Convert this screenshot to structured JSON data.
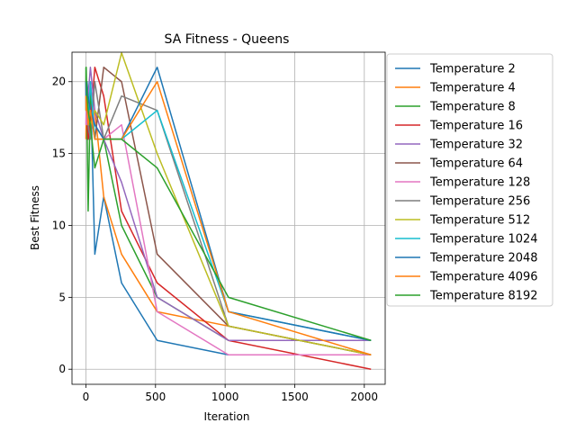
{
  "chart_data": {
    "type": "line",
    "title": "SA Fitness - Queens",
    "xlabel": "Iteration",
    "ylabel": "Best Fitness",
    "xlim": [
      -100,
      2150
    ],
    "ylim": [
      -1.05,
      22.05
    ],
    "x_ticks": [
      0,
      500,
      1000,
      1500,
      2000
    ],
    "y_ticks": [
      0,
      5,
      10,
      15,
      20
    ],
    "grid": true,
    "legend_position": "outside-right",
    "series": [
      {
        "name": "Temperature 2",
        "color": "#1f77b4",
        "x": [
          0,
          2,
          4,
          8,
          16,
          32,
          64,
          128,
          256,
          512,
          1024,
          2048
        ],
        "y": [
          20,
          17,
          20,
          16,
          16,
          20,
          8,
          12,
          6,
          2,
          1,
          1
        ]
      },
      {
        "name": "Temperature 4",
        "color": "#ff7f0e",
        "x": [
          0,
          2,
          4,
          8,
          16,
          32,
          64,
          128,
          256,
          512,
          1024,
          2048
        ],
        "y": [
          16,
          18,
          17,
          20,
          17,
          17,
          18,
          12,
          8,
          4,
          3,
          1
        ]
      },
      {
        "name": "Temperature 8",
        "color": "#2ca02c",
        "x": [
          0,
          2,
          4,
          8,
          16,
          32,
          64,
          128,
          256,
          512,
          1024,
          2048
        ],
        "y": [
          21,
          19,
          20,
          17,
          11,
          19,
          17,
          16,
          10,
          5,
          2,
          2
        ]
      },
      {
        "name": "Temperature 16",
        "color": "#d62728",
        "x": [
          0,
          2,
          4,
          8,
          16,
          32,
          64,
          128,
          256,
          512,
          1024,
          2048
        ],
        "y": [
          19,
          19,
          18,
          17,
          16,
          17,
          21,
          19,
          11,
          6,
          2,
          0
        ]
      },
      {
        "name": "Temperature 32",
        "color": "#9467bd",
        "x": [
          0,
          2,
          4,
          8,
          16,
          32,
          64,
          128,
          256,
          512,
          1024,
          2048
        ],
        "y": [
          18,
          20,
          19,
          18,
          19,
          21,
          18,
          16,
          13,
          5,
          2,
          2
        ]
      },
      {
        "name": "Temperature 64",
        "color": "#8c564b",
        "x": [
          0,
          2,
          4,
          8,
          16,
          32,
          64,
          128,
          256,
          512,
          1024,
          2048
        ],
        "y": [
          20,
          19,
          18,
          17,
          19,
          18,
          16,
          21,
          20,
          8,
          3,
          1
        ]
      },
      {
        "name": "Temperature 128",
        "color": "#e377c2",
        "x": [
          0,
          2,
          4,
          8,
          16,
          32,
          64,
          128,
          256,
          512,
          1024,
          2048
        ],
        "y": [
          17,
          18,
          17,
          19,
          19,
          20,
          17,
          16,
          17,
          4,
          1,
          1
        ]
      },
      {
        "name": "Temperature 256",
        "color": "#7f7f7f",
        "x": [
          0,
          2,
          4,
          8,
          16,
          32,
          64,
          128,
          256,
          512,
          1024,
          2048
        ],
        "y": [
          19,
          20,
          19,
          18,
          17,
          16,
          20,
          16,
          19,
          18,
          3,
          1
        ]
      },
      {
        "name": "Temperature 512",
        "color": "#bcbd22",
        "x": [
          0,
          2,
          4,
          8,
          16,
          32,
          64,
          128,
          256,
          512,
          1024,
          2048
        ],
        "y": [
          18,
          19,
          20,
          19,
          18,
          17,
          18,
          17,
          22,
          15,
          3,
          1
        ]
      },
      {
        "name": "Temperature 1024",
        "color": "#17becf",
        "x": [
          0,
          2,
          4,
          8,
          16,
          32,
          64,
          128,
          256,
          512,
          1024,
          2048
        ],
        "y": [
          19,
          18,
          20,
          19,
          17,
          20,
          16,
          16,
          16,
          18,
          4,
          2
        ]
      },
      {
        "name": "Temperature 2048",
        "color": "#1f77b4",
        "x": [
          0,
          2,
          4,
          8,
          16,
          32,
          64,
          128,
          256,
          512,
          1024,
          2048
        ],
        "y": [
          20,
          19,
          18,
          20,
          19,
          18,
          17,
          16,
          16,
          21,
          4,
          2
        ]
      },
      {
        "name": "Temperature 4096",
        "color": "#ff7f0e",
        "x": [
          0,
          2,
          4,
          8,
          16,
          32,
          64,
          128,
          256,
          512,
          1024,
          2048
        ],
        "y": [
          19,
          18,
          19,
          18,
          17,
          18,
          16,
          16,
          16,
          20,
          4,
          1
        ]
      },
      {
        "name": "Temperature 8192",
        "color": "#2ca02c",
        "x": [
          0,
          2,
          4,
          8,
          16,
          32,
          64,
          128,
          256,
          512,
          1024,
          2048
        ],
        "y": [
          20,
          21,
          20,
          19,
          18,
          17,
          14,
          16,
          16,
          14,
          5,
          2
        ]
      }
    ]
  }
}
